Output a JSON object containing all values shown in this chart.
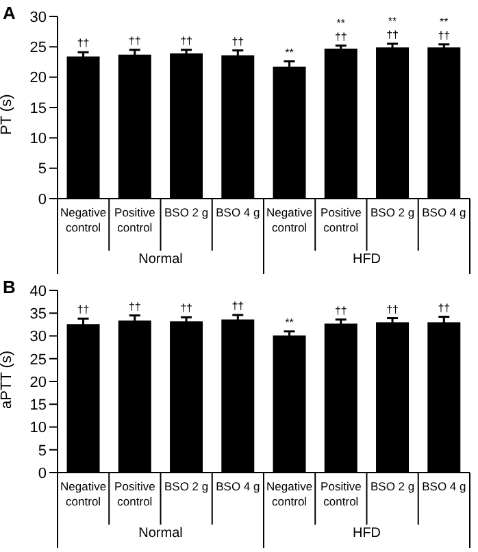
{
  "chart_data": [
    {
      "type": "bar",
      "title": "A",
      "ylabel": "PT (s)",
      "categories": [
        "Negative control",
        "Positive control",
        "BSO 2 g",
        "BSO 4 g",
        "Negative control",
        "Positive control",
        "BSO 2 g",
        "BSO 4 g"
      ],
      "color": "#000000",
      "values": [
        23.4,
        23.7,
        23.9,
        23.6,
        21.7,
        24.7,
        24.9,
        24.9
      ],
      "errors": [
        0.7,
        0.8,
        0.6,
        0.8,
        0.9,
        0.5,
        0.6,
        0.5
      ],
      "value_labels": [
        "††",
        "††",
        "††",
        "††",
        "**",
        "**\n††",
        "**\n††",
        "**\n††"
      ],
      "annotations": [
        "Normal",
        "HFD"
      ],
      "ylim": [
        0,
        30
      ],
      "yticks": [
        0,
        5,
        10,
        15,
        20,
        25,
        30
      ]
    },
    {
      "type": "bar",
      "title": "B",
      "ylabel": "aPTT (s)",
      "categories": [
        "Negative control",
        "Positive control",
        "BSO 2 g",
        "BSO 4 g",
        "Negative control",
        "Positive control",
        "BSO 2 g",
        "BSO 4 g"
      ],
      "color": "#000000",
      "values": [
        32.6,
        33.4,
        33.2,
        33.6,
        30.1,
        32.7,
        33.0,
        33.0
      ],
      "errors": [
        1.2,
        1.1,
        0.9,
        1.0,
        0.9,
        0.9,
        0.9,
        1.2
      ],
      "value_labels": [
        "††",
        "††",
        "††",
        "††",
        "**",
        "††",
        "††",
        "††"
      ],
      "annotations": [
        "Normal",
        "HFD"
      ],
      "ylim": [
        0,
        40
      ],
      "yticks": [
        0,
        5,
        10,
        15,
        20,
        25,
        30,
        35,
        40
      ]
    }
  ]
}
